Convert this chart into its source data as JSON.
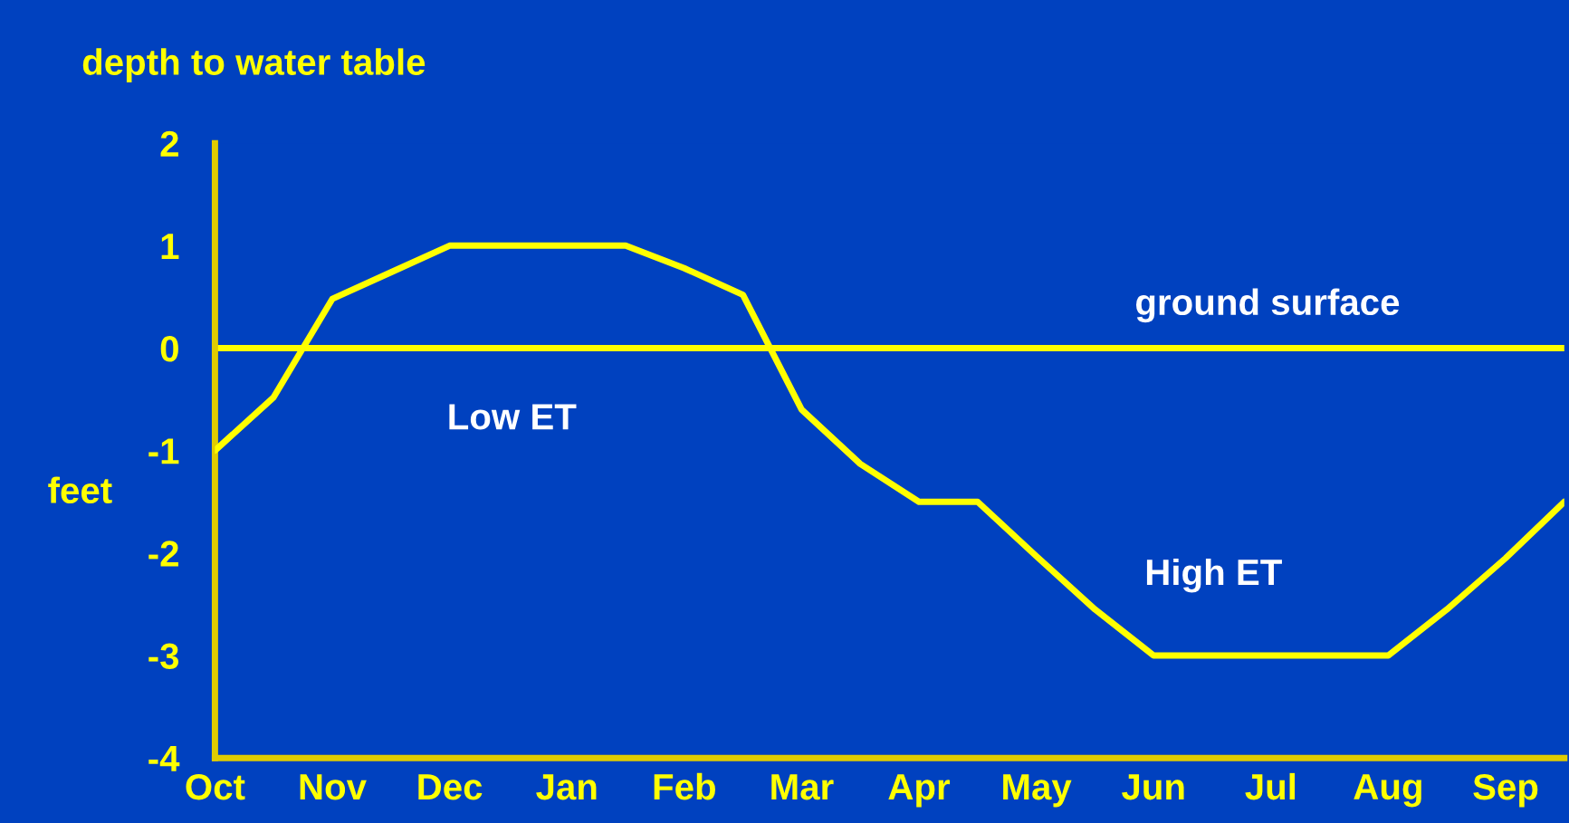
{
  "chart_data": {
    "type": "line",
    "title": "depth to water table",
    "ylabel": "feet",
    "categories": [
      "Oct",
      null,
      "Nov",
      null,
      "Dec",
      null,
      "Jan",
      null,
      "Feb",
      null,
      "Mar",
      null,
      "Apr",
      null,
      "May",
      null,
      "Jun",
      null,
      "Jul",
      null,
      "Aug",
      null,
      "Sep",
      null
    ],
    "series": [
      {
        "color": "#ffff00",
        "values": [
          -1.0,
          -0.48,
          0.48,
          0.74,
          1.0,
          1.0,
          1.0,
          1.0,
          0.78,
          0.52,
          -0.6,
          -1.13,
          -1.5,
          -1.5,
          -2.03,
          -2.55,
          -3.0,
          -3.0,
          -3.0,
          -3.0,
          -3.0,
          -2.55,
          -2.05,
          -1.5
        ]
      }
    ],
    "ylim": [
      -4,
      2
    ],
    "yticks": [
      -4,
      -3,
      -2,
      -1,
      0,
      1,
      2
    ],
    "ref_lines": [
      {
        "axis": "y",
        "value": 0,
        "label": "ground surface",
        "color": "#ffff00"
      }
    ],
    "annotations": [
      "Low ET",
      "High ET"
    ],
    "grid": false,
    "legend": false,
    "marker": "none",
    "line_style": "solid"
  }
}
